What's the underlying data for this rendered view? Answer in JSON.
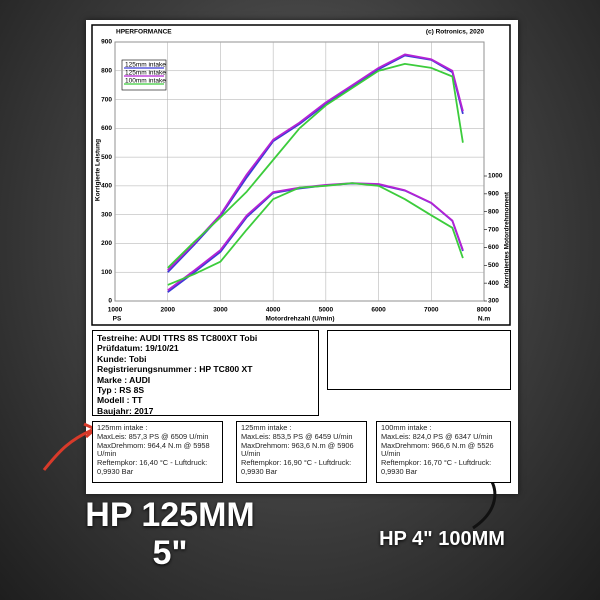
{
  "header": {
    "brand": "HPERFORMANCE",
    "copyright": "(c) Rotronics, 2020"
  },
  "chart_data": {
    "type": "line",
    "xlabel": "Motordrehzahl (U/min)",
    "ylabel": "Korrigierte Leistung",
    "y2label": "Korrigiertes Motordrehmoment",
    "y_unit": "PS",
    "y2_unit": "N.m",
    "x": [
      2000,
      2500,
      3000,
      3500,
      4000,
      4500,
      5000,
      5500,
      6000,
      6500,
      7000,
      7400,
      7600
    ],
    "xlim": [
      1000,
      8000
    ],
    "xticks": [
      1000,
      2000,
      3000,
      4000,
      5000,
      6000,
      7000,
      8000
    ],
    "ylim": [
      0,
      900
    ],
    "yticks": [
      0,
      100,
      200,
      300,
      400,
      500,
      600,
      700,
      800,
      900
    ],
    "y2lim": [
      300,
      1000
    ],
    "y2ticks": [
      300,
      400,
      500,
      600,
      700,
      800,
      900,
      1000
    ],
    "grid": true,
    "legend": "top-left",
    "series": [
      {
        "name": "125mm intake",
        "color": "#3b3bd6",
        "values": [
          100,
          195,
          295,
          430,
          555,
          615,
          685,
          745,
          805,
          853,
          838,
          795,
          650
        ]
      },
      {
        "name": "125mm intake",
        "color": "#b522d4",
        "values": [
          107,
          200,
          300,
          440,
          560,
          620,
          690,
          750,
          810,
          857,
          840,
          800,
          660
        ]
      },
      {
        "name": "100mm intake",
        "color": "#3ccc3c",
        "values": [
          115,
          205,
          290,
          380,
          490,
          600,
          680,
          740,
          800,
          824,
          810,
          780,
          550
        ]
      },
      {
        "name": "125mm intake",
        "color": "#3b3bd6",
        "axis": "y2",
        "values": [
          350,
          460,
          575,
          770,
          905,
          930,
          948,
          958,
          952,
          918,
          848,
          748,
          580
        ]
      },
      {
        "name": "125mm intake",
        "color": "#b522d4",
        "axis": "y2",
        "values": [
          360,
          470,
          585,
          780,
          910,
          935,
          950,
          960,
          955,
          920,
          850,
          750,
          585
        ]
      },
      {
        "name": "100mm intake",
        "color": "#3ccc3c",
        "axis": "y2",
        "values": [
          390,
          450,
          520,
          700,
          870,
          935,
          945,
          960,
          945,
          870,
          780,
          710,
          540
        ]
      }
    ]
  },
  "test_info": [
    "Testreihe: AUDI TTRS 8S TC800XT Tobi",
    "Prüfdatum: 19/10/21",
    "Kunde: Tobi",
    "Registrierungsnummer  : HP TC800 XT",
    "Marke  : AUDI",
    "Typ  : RS 8S",
    "Modell  : TT",
    "Baujahr: 2017"
  ],
  "results": [
    [
      "125mm intake :",
      "MaxLeis: 857,3 PS @ 6509 U/min",
      "MaxDrehmom: 964,4 N.m @ 5958 U/min",
      "Reftempkor: 16,40 °C - Luftdruck: 0,9930 Bar"
    ],
    [
      "125mm intake :",
      "MaxLeis: 853,5 PS @ 6459 U/min",
      "MaxDrehmom: 963,6 N.m @ 5906 U/min",
      "Reftempkor: 16,90 °C - Luftdruck: 0,9930 Bar"
    ],
    [
      "100mm intake :",
      "MaxLeis: 824,0 PS @ 6347 U/min",
      "MaxDrehmom: 966,6 N.m @ 5526 U/min",
      "Reftempkor: 16,70 °C - Luftdruck: 0,9930 Bar"
    ]
  ],
  "overlay": {
    "left": [
      "HP 125MM",
      "5\""
    ],
    "right": "HP 4\" 100MM"
  }
}
